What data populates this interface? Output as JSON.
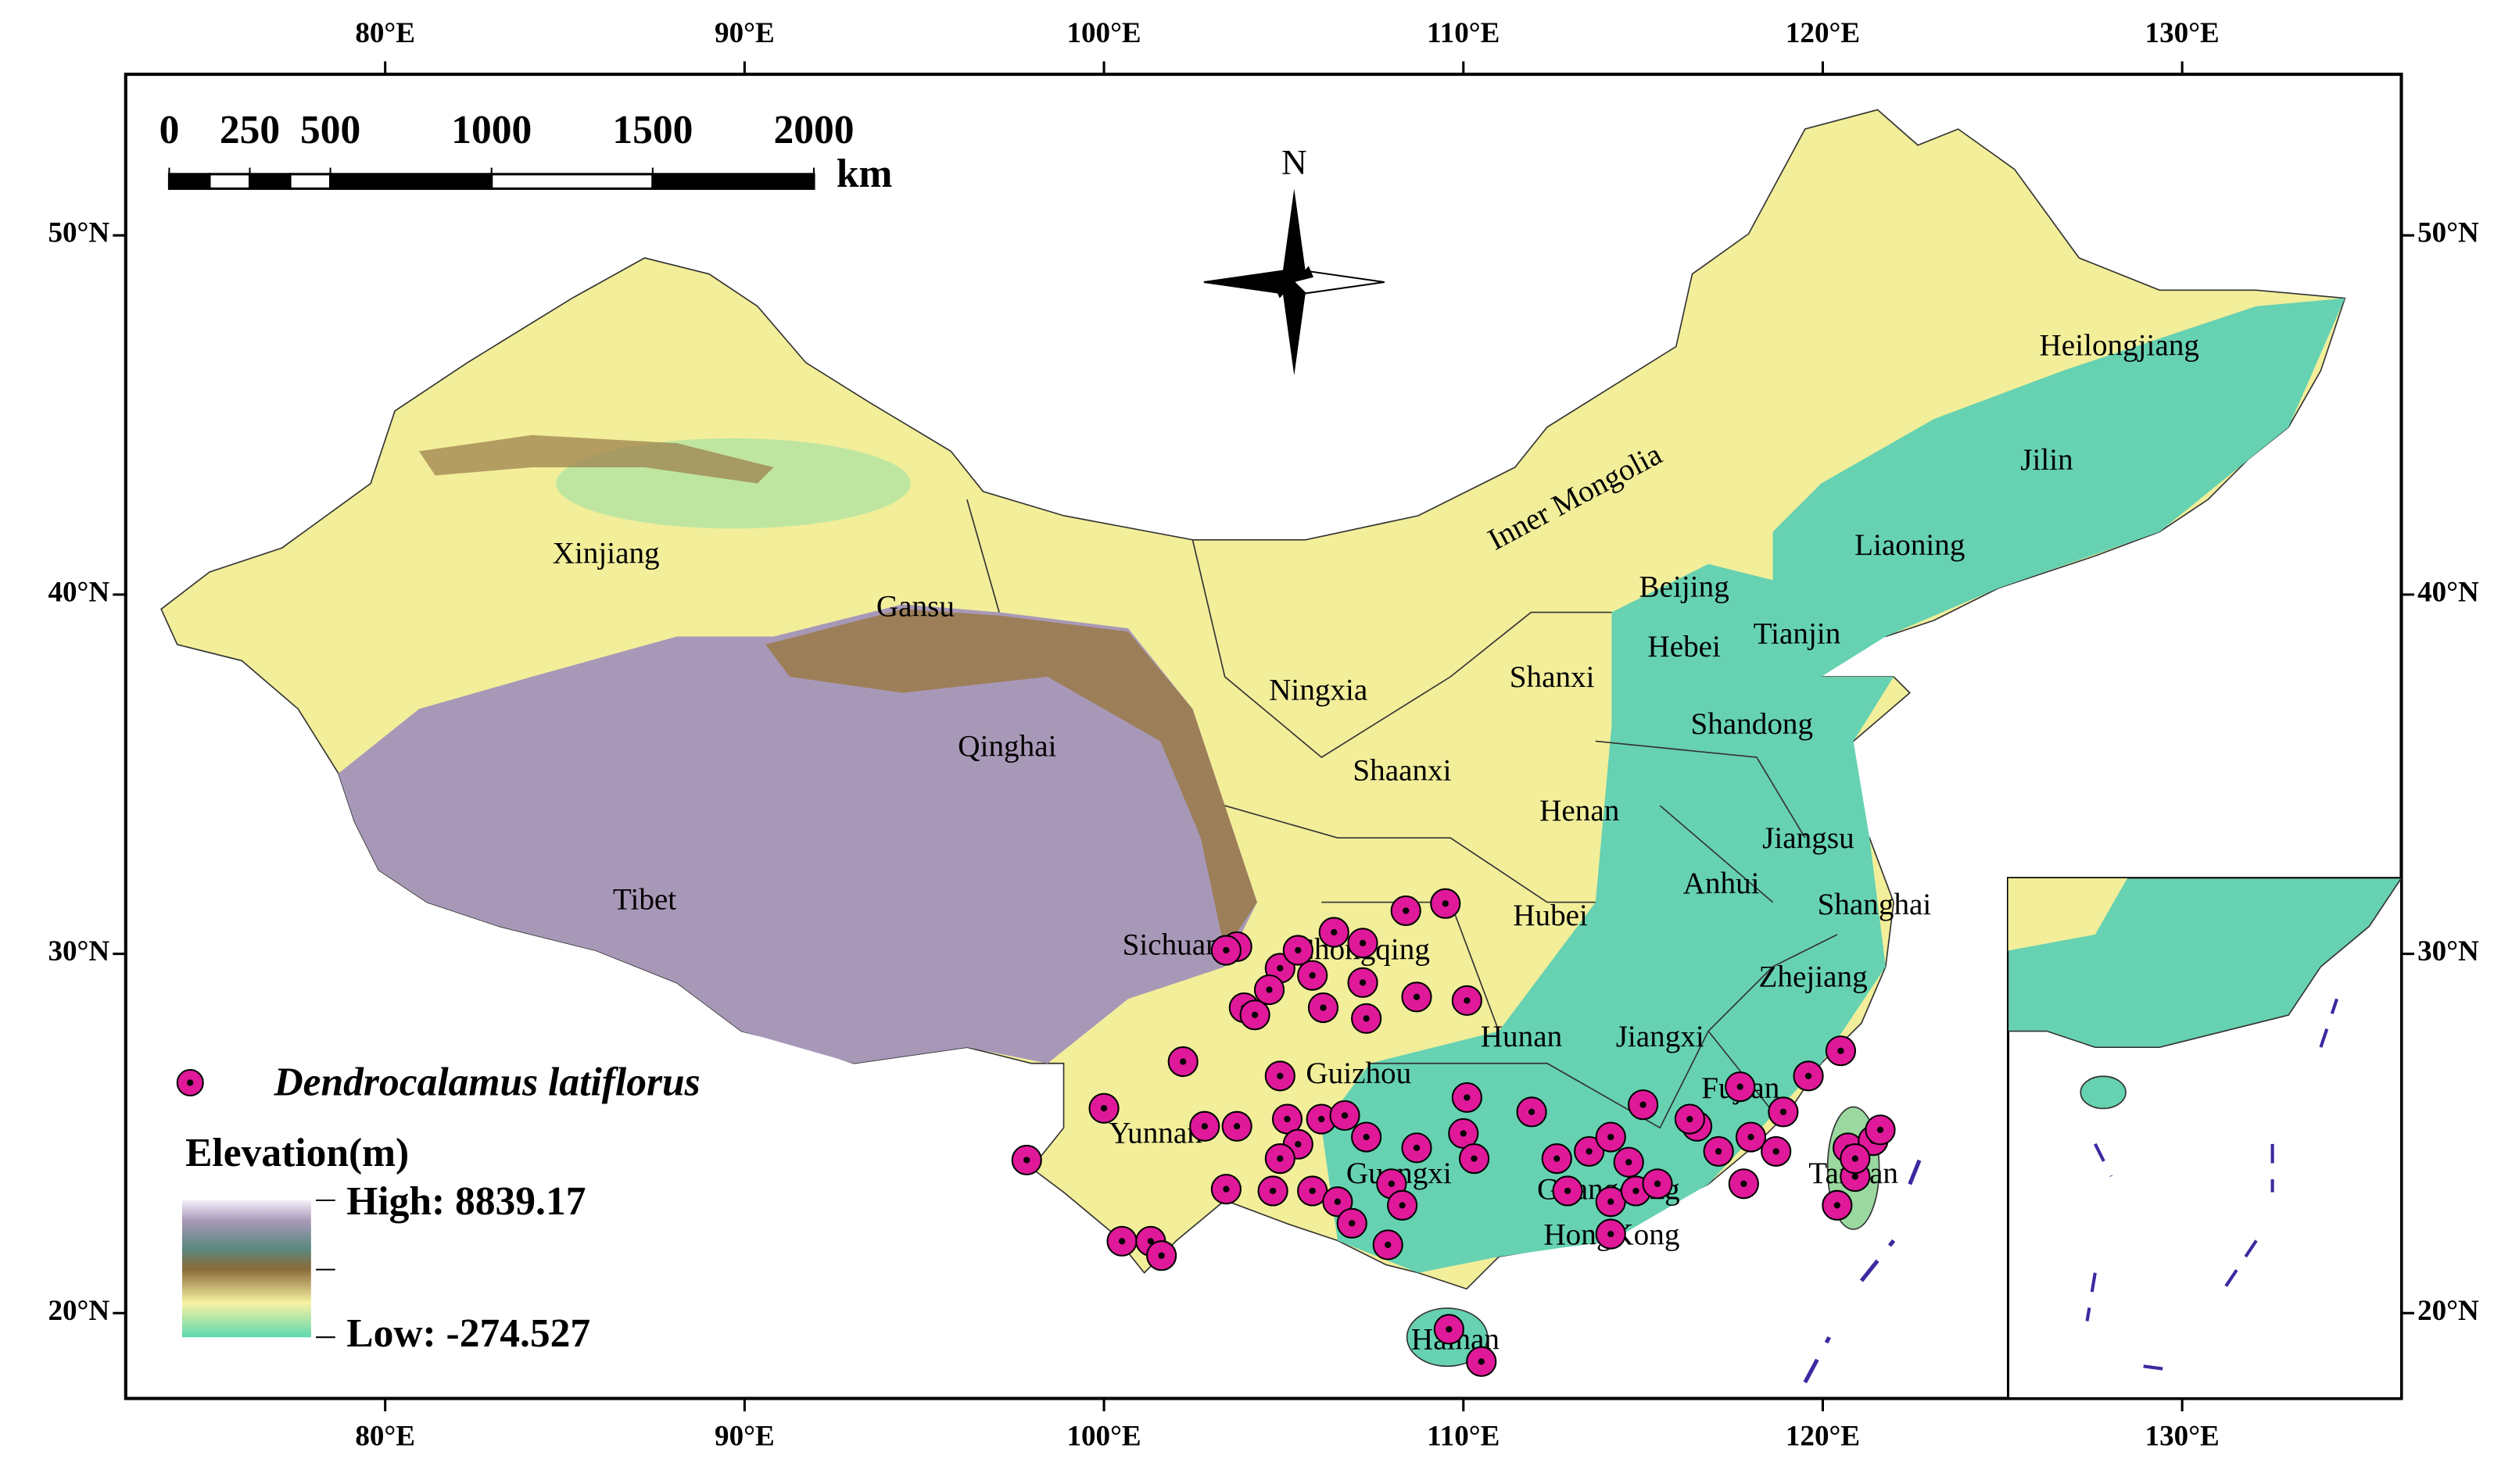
{
  "map": {
    "lon_ticks": [
      {
        "value": 80,
        "label": "80°E"
      },
      {
        "value": 90,
        "label": "90°E"
      },
      {
        "value": 100,
        "label": "100°E"
      },
      {
        "value": 110,
        "label": "110°E"
      },
      {
        "value": 120,
        "label": "120°E"
      },
      {
        "value": 130,
        "label": "130°E"
      }
    ],
    "lat_ticks": [
      {
        "value": 20,
        "label": "20°N"
      },
      {
        "value": 30,
        "label": "30°N"
      },
      {
        "value": 40,
        "label": "40°N"
      },
      {
        "value": 50,
        "label": "50°N"
      }
    ],
    "scale_bar": {
      "ticks": [
        0,
        250,
        500,
        1000,
        1500,
        2000
      ],
      "unit": "km"
    },
    "north": "N",
    "regions": [
      "Xinjiang",
      "Gansu",
      "Qinghai",
      "Tibet",
      "Sichuan",
      "Chongqing",
      "Yunnan",
      "Guizhou",
      "Guangxi",
      "Ningxia",
      "Shaanxi",
      "Shanxi",
      "Henan",
      "Hubei",
      "Hunan",
      "Jiangxi",
      "Guangdong",
      "HongKong",
      "Hainan",
      "Inner Mongolia",
      "Beijing",
      "Tianjin",
      "Hebei",
      "Shandong",
      "Liaoning",
      "Jilin",
      "Heilongjiang",
      "Jiangsu",
      "Anhui",
      "Shanghai",
      "Zhejiang",
      "Fujian",
      "Taiwan"
    ],
    "occurrences": {
      "name": "Dendrocalamus latiflorus",
      "color": "#e0189a",
      "lon": [
        97.85,
        100.0,
        100.5,
        101.3,
        101.6,
        102.2,
        102.8,
        103.7,
        103.4,
        103.7,
        103.9,
        104.2,
        104.9,
        105.4,
        105.8,
        106.4,
        107.2,
        107.2,
        107.3,
        106.1,
        108.4,
        109.5,
        108.7,
        110.1,
        104.9,
        105.1,
        105.4,
        106.05,
        106.7,
        107.3,
        104.9,
        104.7,
        105.8,
        106.5,
        106.9,
        108.0,
        108.3,
        107.9,
        108.7,
        110.1,
        110.0,
        110.3,
        111.9,
        112.6,
        113.5,
        114.1,
        115.0,
        112.9,
        114.1,
        114.8,
        114.1,
        115.4,
        116.5,
        117.1,
        117.7,
        118.0,
        118.9,
        119.6,
        120.5,
        120.7,
        120.9,
        121.4,
        121.6,
        120.4,
        120.9,
        109.6,
        110.5,
        103.4,
        104.6,
        116.3,
        117.8,
        118.7,
        114.6
      ],
      "lat": [
        24.26,
        25.7,
        22.0,
        22.0,
        21.6,
        27.0,
        25.2,
        25.2,
        23.45,
        30.2,
        28.5,
        28.3,
        29.6,
        30.1,
        29.4,
        30.6,
        30.3,
        29.2,
        28.2,
        28.5,
        31.2,
        31.4,
        28.8,
        28.7,
        26.6,
        25.4,
        24.7,
        25.4,
        25.5,
        24.9,
        24.3,
        23.4,
        23.4,
        23.1,
        22.5,
        23.6,
        23.0,
        21.9,
        24.6,
        26.0,
        25.0,
        24.3,
        25.6,
        24.3,
        24.5,
        24.9,
        25.8,
        23.4,
        23.1,
        23.4,
        22.2,
        23.6,
        25.2,
        24.5,
        26.3,
        24.9,
        25.6,
        26.6,
        27.3,
        24.6,
        23.8,
        24.8,
        25.1,
        23.0,
        24.3,
        19.55,
        18.65,
        30.1,
        29.0,
        25.4,
        23.6,
        24.5,
        24.2
      ]
    },
    "elevation_legend": {
      "title": "Elevation(m)",
      "high": "High: 8839.17",
      "low": "Low: -274.527"
    }
  }
}
